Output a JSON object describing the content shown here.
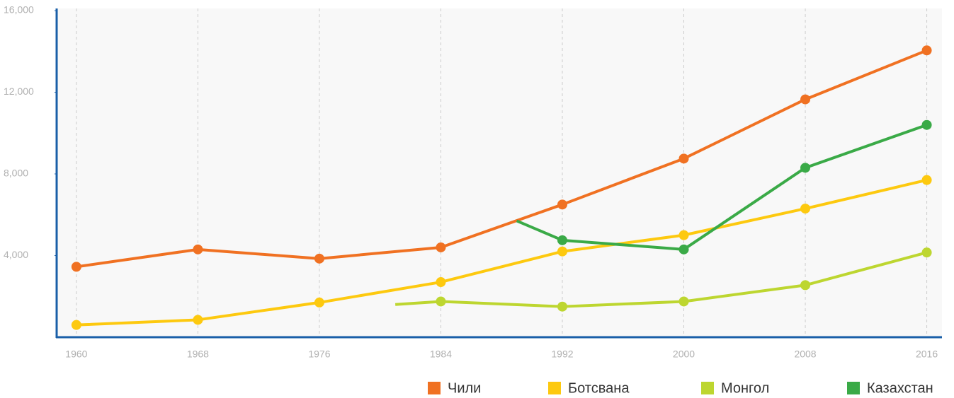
{
  "chart_data": {
    "type": "line",
    "xlim": [
      1958.7,
      2017
    ],
    "ylim": [
      0,
      16000
    ],
    "xticks": [
      1960,
      1968,
      1976,
      1984,
      1992,
      2000,
      2008,
      2016
    ],
    "yticks": [
      {
        "value": 4000,
        "label": "4,000"
      },
      {
        "value": 8000,
        "label": "8,000"
      },
      {
        "value": 12000,
        "label": "12,000"
      },
      {
        "value": 16000,
        "label": "16,000"
      }
    ],
    "grid": true,
    "legend": "bottom-right",
    "series": [
      {
        "name": "Чили",
        "color": "#f07122",
        "x": [
          1960,
          1968,
          1976,
          1984,
          1992,
          2000,
          2008,
          2016
        ],
        "values": [
          3450,
          4300,
          3850,
          4400,
          6500,
          8750,
          11650,
          14050
        ]
      },
      {
        "name": "Ботсвана",
        "color": "#fdc90f",
        "x": [
          1960,
          1968,
          1976,
          1984,
          1992,
          2000,
          2008,
          2016
        ],
        "values": [
          600,
          850,
          1700,
          2700,
          4200,
          5000,
          6300,
          7700
        ]
      },
      {
        "name": "Монгол",
        "color": "#bdd630",
        "x": [
          1981,
          1984,
          1992,
          2000,
          2008,
          2016
        ],
        "values": [
          1600,
          1750,
          1500,
          1750,
          2550,
          4150
        ]
      },
      {
        "name": "Казахстан",
        "color": "#3aaa47",
        "x": [
          1989,
          1992,
          2000,
          2008,
          2016
        ],
        "values": [
          5700,
          4750,
          4300,
          8300,
          10400
        ]
      }
    ]
  }
}
